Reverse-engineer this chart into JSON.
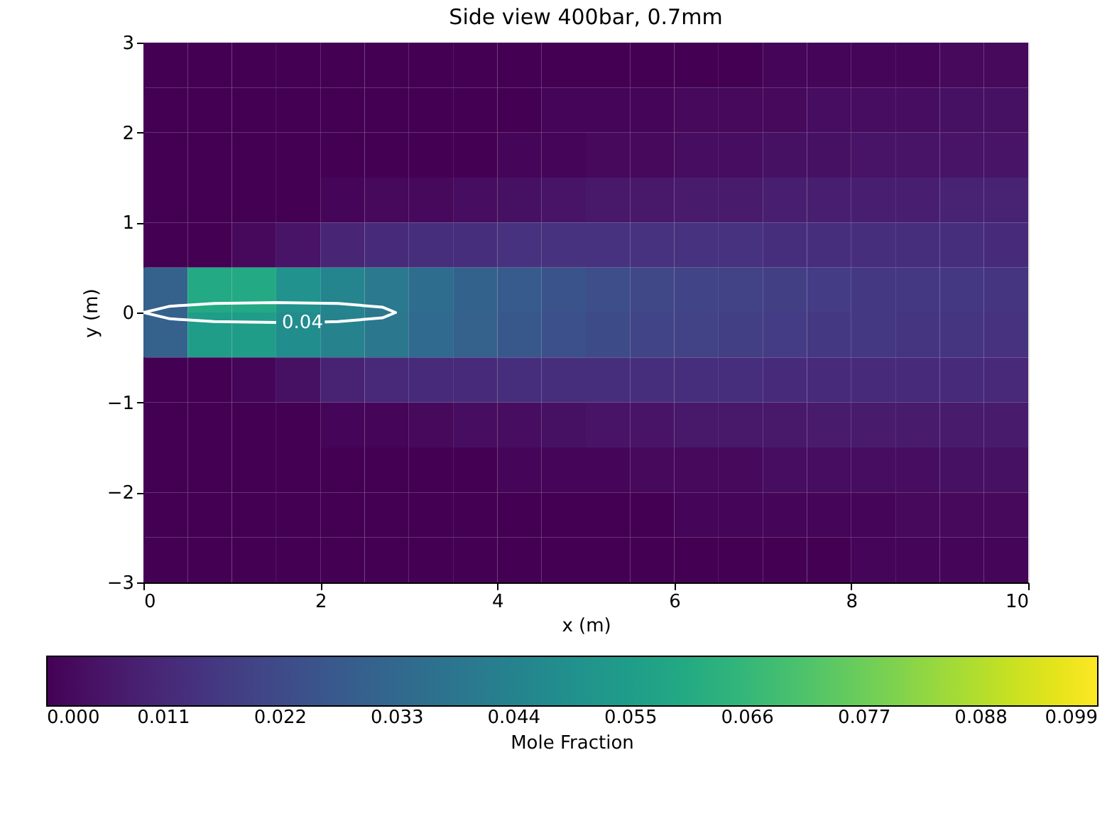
{
  "chart_data": {
    "type": "heatmap",
    "title": "Side view 400bar, 0.7mm",
    "xlabel": "x (m)",
    "ylabel": "y (m)",
    "clabel": "Mole Fraction",
    "x": [
      0.25,
      0.75,
      1.25,
      1.75,
      2.25,
      2.75,
      3.25,
      3.75,
      4.25,
      4.75,
      5.25,
      5.75,
      6.25,
      6.75,
      7.25,
      7.75,
      8.25,
      8.75,
      9.25,
      9.75
    ],
    "cells": [
      [
        0,
        0,
        0,
        0,
        0,
        0,
        0,
        0,
        0,
        0,
        0,
        0,
        0,
        0,
        0.001,
        0.001,
        0.001,
        0.001,
        0.002,
        0.002
      ],
      [
        0,
        0,
        0,
        0,
        0,
        0,
        0,
        0,
        0,
        0.001,
        0.001,
        0.001,
        0.002,
        0.002,
        0.002,
        0.003,
        0.003,
        0.003,
        0.004,
        0.004
      ],
      [
        0,
        0,
        0,
        0,
        0,
        0,
        0,
        0,
        0.001,
        0.001,
        0.002,
        0.002,
        0.003,
        0.003,
        0.004,
        0.004,
        0.005,
        0.005,
        0.005,
        0.005
      ],
      [
        0,
        0,
        0,
        0,
        0.001,
        0.002,
        0.002,
        0.003,
        0.004,
        0.005,
        0.006,
        0.006,
        0.007,
        0.007,
        0.008,
        0.008,
        0.008,
        0.008,
        0.009,
        0.009
      ],
      [
        0,
        0,
        0.002,
        0.005,
        0.01,
        0.012,
        0.013,
        0.013,
        0.014,
        0.014,
        0.014,
        0.014,
        0.014,
        0.014,
        0.013,
        0.013,
        0.013,
        0.013,
        0.013,
        0.012
      ],
      [
        0.03,
        0.06,
        0.06,
        0.05,
        0.045,
        0.04,
        0.035,
        0.031,
        0.028,
        0.025,
        0.023,
        0.021,
        0.02,
        0.019,
        0.018,
        0.017,
        0.016,
        0.016,
        0.016,
        0.015
      ],
      [
        0.03,
        0.055,
        0.055,
        0.048,
        0.044,
        0.039,
        0.034,
        0.03,
        0.027,
        0.024,
        0.022,
        0.02,
        0.019,
        0.018,
        0.017,
        0.016,
        0.016,
        0.015,
        0.015,
        0.014
      ],
      [
        0,
        0,
        0.001,
        0.004,
        0.009,
        0.011,
        0.012,
        0.012,
        0.013,
        0.013,
        0.013,
        0.013,
        0.013,
        0.013,
        0.012,
        0.012,
        0.012,
        0.012,
        0.012,
        0.011
      ],
      [
        0,
        0,
        0,
        0,
        0.001,
        0.001,
        0.002,
        0.003,
        0.003,
        0.004,
        0.005,
        0.005,
        0.006,
        0.006,
        0.006,
        0.007,
        0.007,
        0.007,
        0.007,
        0.007
      ],
      [
        0,
        0,
        0,
        0,
        0,
        0,
        0,
        0,
        0.001,
        0.001,
        0.001,
        0.002,
        0.002,
        0.002,
        0.003,
        0.003,
        0.003,
        0.003,
        0.004,
        0.004
      ],
      [
        0,
        0,
        0,
        0,
        0,
        0,
        0,
        0,
        0,
        0,
        0,
        0,
        0.001,
        0.001,
        0.001,
        0.001,
        0.001,
        0.002,
        0.002,
        0.002
      ],
      [
        0,
        0,
        0,
        0,
        0,
        0,
        0,
        0,
        0,
        0,
        0,
        0,
        0,
        0,
        0,
        0,
        0.001,
        0.001,
        0.001,
        0.001
      ]
    ],
    "series": [
      {
        "type": "line",
        "color": "#ffffff",
        "x": [
          0,
          0.3,
          0.8,
          1.5,
          2.2,
          2.7,
          2.85,
          2.7,
          2.2,
          2.05,
          1.55,
          1.5,
          0.8,
          0.3,
          0
        ],
        "values": [
          0,
          0.07,
          0.1,
          0.11,
          0.1,
          0.06,
          0,
          -0.06,
          -0.1,
          -0.105,
          null,
          -0.11,
          -0.1,
          -0.07,
          0
        ]
      }
    ],
    "annotations": [
      "0.04"
    ],
    "xlim": [
      0,
      10
    ],
    "xticks": [
      0,
      2,
      4,
      6,
      8,
      10
    ],
    "ylim": [
      -3,
      3
    ],
    "yticks": [
      {
        "value": -3,
        "label": "−3"
      },
      {
        "value": -2,
        "label": "−2"
      },
      {
        "value": -1,
        "label": "−1"
      },
      0,
      1,
      2,
      3
    ],
    "clim": [
      0,
      0.099
    ],
    "cticks": [
      {
        "value": 0,
        "label": "0.000"
      },
      0.011,
      0.022,
      0.033,
      0.044,
      0.055,
      0.066,
      0.077,
      0.088,
      0.099
    ]
  }
}
